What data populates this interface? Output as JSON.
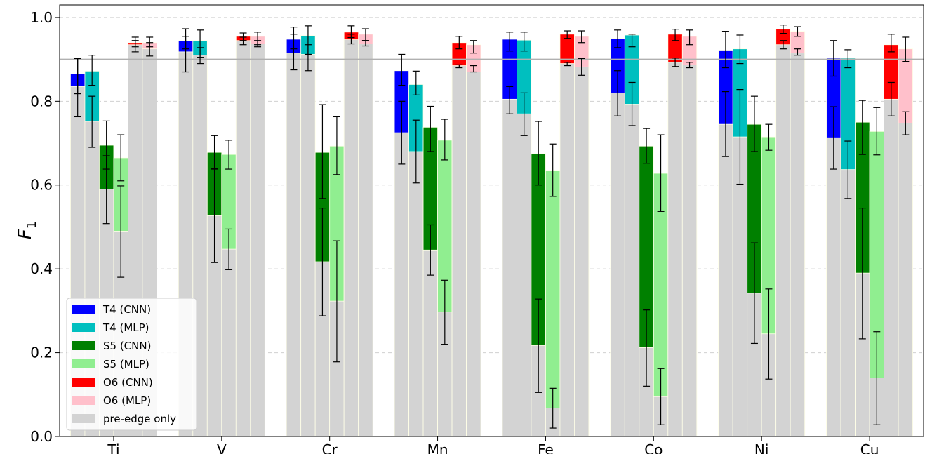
{
  "chart_data": {
    "type": "bar",
    "ylabel_main": "F",
    "ylabel_sub": "1",
    "ylim": [
      0,
      1.03
    ],
    "yticks": [
      0.0,
      0.2,
      0.4,
      0.6,
      0.8,
      1.0
    ],
    "ytick_labels": [
      "0.0",
      "0.2",
      "0.4",
      "0.6",
      "0.8",
      "1.0"
    ],
    "grid": "horizontal dashed",
    "reference_line": 0.9,
    "legend_position": "bottom-left",
    "categories": [
      "Ti",
      "V",
      "Cr",
      "Mn",
      "Fe",
      "Co",
      "Ni",
      "Cu"
    ],
    "baseline_name": "pre-edge only",
    "baseline_color": "#d3d3d3",
    "series": [
      {
        "name": "T4 (CNN)",
        "color": "#0000ff",
        "values": [
          0.865,
          0.945,
          0.948,
          0.873,
          0.948,
          0.95,
          0.922,
          0.903
        ],
        "err_low": [
          0.818,
          0.925,
          0.925,
          0.838,
          0.92,
          0.928,
          0.88,
          0.86
        ],
        "err_high": [
          0.902,
          0.973,
          0.977,
          0.912,
          0.965,
          0.97,
          0.967,
          0.945
        ],
        "baseline": [
          0.835,
          0.918,
          0.915,
          0.725,
          0.805,
          0.82,
          0.745,
          0.713
        ],
        "base_err_low": [
          0.763,
          0.87,
          0.875,
          0.65,
          0.77,
          0.765,
          0.668,
          0.638
        ],
        "base_err_high": [
          0.903,
          0.955,
          0.96,
          0.8,
          0.835,
          0.873,
          0.823,
          0.787
        ]
      },
      {
        "name": "T4 (MLP)",
        "color": "#00bfbf",
        "values": [
          0.872,
          0.945,
          0.957,
          0.84,
          0.946,
          0.958,
          0.925,
          0.903
        ],
        "err_low": [
          0.838,
          0.905,
          0.912,
          0.815,
          0.92,
          0.93,
          0.89,
          0.88
        ],
        "err_high": [
          0.91,
          0.97,
          0.98,
          0.872,
          0.965,
          0.96,
          0.958,
          0.923
        ],
        "baseline": [
          0.752,
          0.91,
          0.912,
          0.68,
          0.77,
          0.793,
          0.715,
          0.637
        ],
        "base_err_low": [
          0.69,
          0.89,
          0.873,
          0.605,
          0.718,
          0.742,
          0.602,
          0.568
        ],
        "base_err_high": [
          0.812,
          0.928,
          0.935,
          0.755,
          0.82,
          0.845,
          0.828,
          0.705
        ]
      },
      {
        "name": "S5 (CNN)",
        "color": "#008000",
        "values": [
          0.695,
          0.678,
          0.678,
          0.738,
          0.675,
          0.693,
          0.745,
          0.75
        ],
        "err_low": [
          0.638,
          0.638,
          0.568,
          0.68,
          0.6,
          0.652,
          0.68,
          0.673
        ],
        "err_high": [
          0.753,
          0.718,
          0.792,
          0.788,
          0.752,
          0.735,
          0.812,
          0.802
        ],
        "baseline": [
          0.59,
          0.527,
          0.417,
          0.445,
          0.217,
          0.212,
          0.342,
          0.39
        ],
        "base_err_low": [
          0.508,
          0.415,
          0.288,
          0.385,
          0.105,
          0.12,
          0.222,
          0.233
        ],
        "base_err_high": [
          0.67,
          0.64,
          0.545,
          0.505,
          0.328,
          0.302,
          0.462,
          0.545
        ]
      },
      {
        "name": "S5 (MLP)",
        "color": "#90ee90",
        "values": [
          0.665,
          0.673,
          0.693,
          0.707,
          0.635,
          0.628,
          0.715,
          0.728
        ],
        "err_low": [
          0.61,
          0.638,
          0.625,
          0.66,
          0.573,
          0.537,
          0.683,
          0.672
        ],
        "err_high": [
          0.72,
          0.707,
          0.763,
          0.757,
          0.698,
          0.72,
          0.745,
          0.785
        ],
        "baseline": [
          0.49,
          0.447,
          0.323,
          0.297,
          0.068,
          0.095,
          0.245,
          0.14
        ],
        "base_err_low": [
          0.38,
          0.398,
          0.178,
          0.22,
          0.02,
          0.028,
          0.137,
          0.028
        ],
        "base_err_high": [
          0.598,
          0.495,
          0.467,
          0.373,
          0.115,
          0.162,
          0.352,
          0.25
        ]
      },
      {
        "name": "O6 (CNN)",
        "color": "#ff0000",
        "values": [
          0.94,
          0.955,
          0.965,
          0.94,
          0.96,
          0.96,
          0.972,
          0.935
        ],
        "err_low": [
          0.93,
          0.945,
          0.952,
          0.925,
          0.95,
          0.945,
          0.962,
          0.918
        ],
        "err_high": [
          0.953,
          0.963,
          0.98,
          0.955,
          0.968,
          0.972,
          0.982,
          0.96
        ],
        "baseline": [
          0.935,
          0.945,
          0.947,
          0.885,
          0.89,
          0.893,
          0.935,
          0.805
        ],
        "base_err_low": [
          0.918,
          0.935,
          0.937,
          0.88,
          0.885,
          0.883,
          0.925,
          0.765
        ],
        "base_err_high": [
          0.945,
          0.953,
          0.96,
          0.887,
          0.893,
          0.903,
          0.945,
          0.845
        ]
      },
      {
        "name": "O6 (MLP)",
        "color": "#ffc0cb",
        "values": [
          0.94,
          0.955,
          0.96,
          0.935,
          0.955,
          0.955,
          0.967,
          0.925
        ],
        "err_low": [
          0.93,
          0.935,
          0.945,
          0.915,
          0.94,
          0.935,
          0.955,
          0.895
        ],
        "err_high": [
          0.953,
          0.965,
          0.973,
          0.945,
          0.968,
          0.97,
          0.978,
          0.953
        ],
        "baseline": [
          0.925,
          0.937,
          0.937,
          0.87,
          0.882,
          0.887,
          0.915,
          0.748
        ],
        "base_err_low": [
          0.908,
          0.93,
          0.932,
          0.87,
          0.862,
          0.88,
          0.91,
          0.72
        ],
        "base_err_high": [
          0.94,
          0.945,
          0.945,
          0.885,
          0.902,
          0.893,
          0.925,
          0.775
        ]
      }
    ]
  }
}
